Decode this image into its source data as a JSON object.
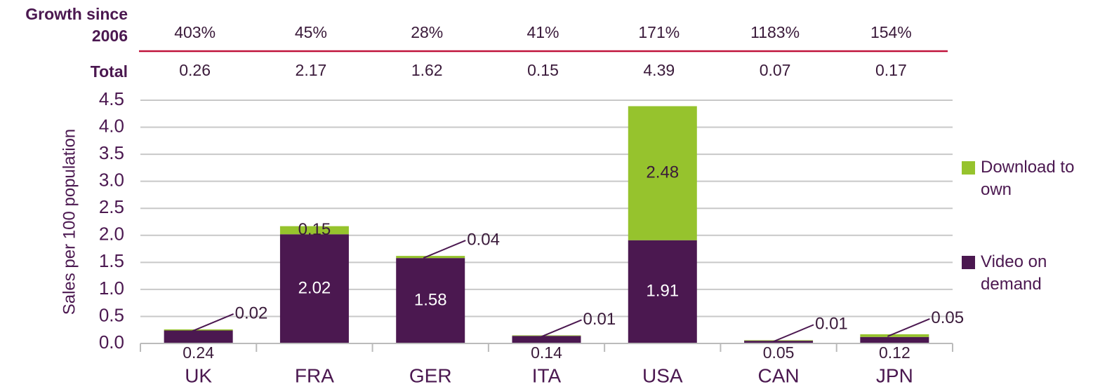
{
  "chart_data": {
    "type": "stacked_bar",
    "growth_title": "Growth since 2006",
    "growth": [
      "403%",
      "45%",
      "28%",
      "41%",
      "171%",
      "1183%",
      "154%"
    ],
    "total_title": "Total",
    "totals": [
      0.26,
      2.17,
      1.62,
      0.15,
      4.39,
      0.07,
      0.17
    ],
    "y_label": "Sales per 100 population",
    "categories": [
      "UK",
      "FRA",
      "GER",
      "ITA",
      "USA",
      "CAN",
      "JPN"
    ],
    "series": [
      {
        "name": "Video on demand",
        "color": "#4b1850",
        "values": [
          0.24,
          2.02,
          1.58,
          0.14,
          1.91,
          0.05,
          0.12
        ]
      },
      {
        "name": "Download to own",
        "color": "#96c32d",
        "values": [
          0.02,
          0.15,
          0.04,
          0.01,
          2.48,
          0.01,
          0.05
        ]
      }
    ],
    "ylim": [
      0,
      4.5
    ],
    "yticks": [
      {
        "value": 0,
        "label": "0.0"
      },
      0.5,
      {
        "value": 1,
        "label": "1.0"
      },
      1.5,
      {
        "value": 2,
        "label": "2.0"
      },
      2.5,
      {
        "value": 3,
        "label": "3.0"
      },
      3.5,
      {
        "value": 4,
        "label": "4.0"
      },
      4.5
    ],
    "grid": true,
    "legend": "right"
  }
}
